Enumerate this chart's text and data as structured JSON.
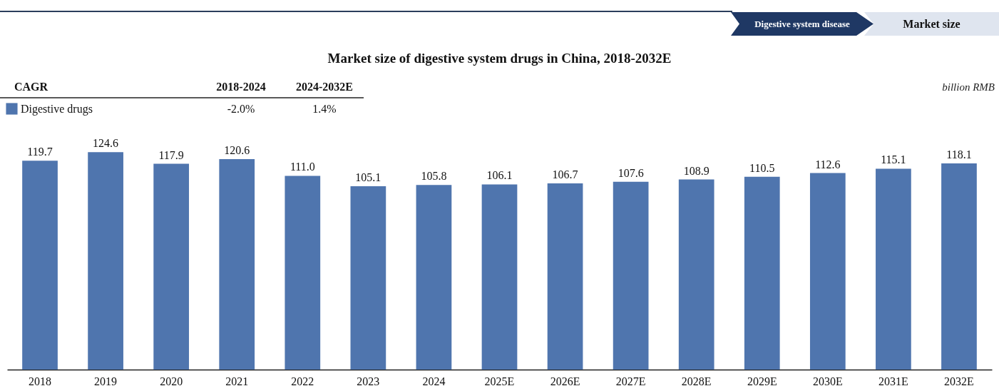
{
  "chart_data": {
    "type": "bar",
    "title": "Market size of digestive system drugs in China, 2018-2032E",
    "categories": [
      "2018",
      "2019",
      "2020",
      "2021",
      "2022",
      "2023",
      "2024",
      "2025E",
      "2026E",
      "2027E",
      "2028E",
      "2029E",
      "2030E",
      "2031E",
      "2032E"
    ],
    "series": [
      {
        "name": "Digestive drugs",
        "color": "#4f75ae",
        "values": [
          119.7,
          124.6,
          117.9,
          120.6,
          111.0,
          105.1,
          105.8,
          106.1,
          106.7,
          107.6,
          108.9,
          110.5,
          112.6,
          115.1,
          118.1
        ],
        "value_labels": [
          "119.7",
          "124.6",
          "117.9",
          "120.6",
          "111.0",
          "105.1",
          "105.8",
          "106.1",
          "106.7",
          "107.6",
          "108.9",
          "110.5",
          "112.6",
          "115.1",
          "118.1"
        ]
      }
    ],
    "legend": "top left",
    "grid": false,
    "annotations": [
      "Digestive system disease",
      "Market size",
      "CAGR",
      "2018-2024",
      "2024-2032E",
      "-2.0%",
      "1.4%",
      "billion RMB"
    ]
  }
}
